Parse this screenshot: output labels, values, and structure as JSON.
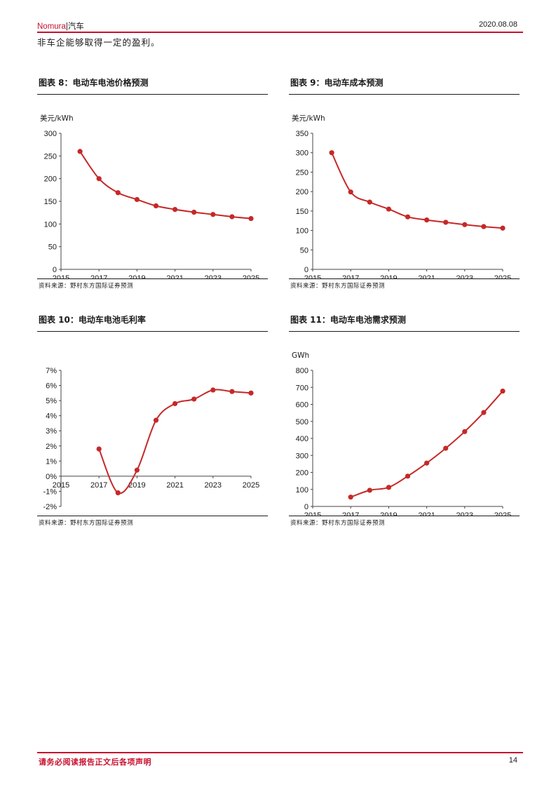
{
  "header": {
    "brand": "Nomura",
    "section": "|汽车",
    "date": "2020.08.08",
    "accent": "#c8102e"
  },
  "intro_text": "非车企能够取得一定的盈利。",
  "figures": [
    {
      "title": "图表 8：电动车电池价格预测",
      "source": "资料来源：野村东方国际证券预测"
    },
    {
      "title": "图表 9：电动车成本预测",
      "source": "资料来源：野村东方国际证券预测"
    },
    {
      "title": "图表 10：电动车电池毛利率",
      "source": "资料来源：野村东方国际证券预测"
    },
    {
      "title": "图表 11：电动车电池需求预测",
      "source": "资料来源：野村东方国际证券预测"
    }
  ],
  "chart_data": [
    {
      "type": "line",
      "title": "图表 8：电动车电池价格预测",
      "ylabel": "美元/kWh",
      "x": [
        2016,
        2017,
        2018,
        2019,
        2020,
        2021,
        2022,
        2023,
        2024,
        2025
      ],
      "values": [
        260,
        200,
        169,
        154,
        140,
        132,
        126,
        121,
        116,
        112
      ],
      "xlim": [
        2015,
        2025
      ],
      "xticks": [
        "2015",
        "2017",
        "2019",
        "2021",
        "2023",
        "2025"
      ],
      "ylim": [
        0,
        300
      ],
      "yticks": [
        "0",
        "50",
        "100",
        "150",
        "200",
        "250",
        "300"
      ],
      "color": "#c62828",
      "grid": false,
      "legend": "none"
    },
    {
      "type": "line",
      "title": "图表 9：电动车成本预测",
      "ylabel": "美元/kWh",
      "x": [
        2016,
        2017,
        2018,
        2019,
        2020,
        2021,
        2022,
        2023,
        2024,
        2025
      ],
      "values": [
        300,
        199,
        173,
        155,
        135,
        127,
        121,
        115,
        110,
        106
      ],
      "xlim": [
        2015,
        2025
      ],
      "xticks": [
        "2015",
        "2017",
        "2019",
        "2021",
        "2023",
        "2025"
      ],
      "ylim": [
        0,
        350
      ],
      "yticks": [
        "0",
        "50",
        "100",
        "150",
        "200",
        "250",
        "300",
        "350"
      ],
      "color": "#c62828",
      "grid": false,
      "legend": "none"
    },
    {
      "type": "line",
      "title": "图表 10：电动车电池毛利率",
      "ylabel": "",
      "x": [
        2017,
        2018,
        2019,
        2020,
        2021,
        2022,
        2023,
        2024,
        2025
      ],
      "values": [
        1.8,
        -1.1,
        0.4,
        3.7,
        4.8,
        5.1,
        5.7,
        5.6,
        5.5
      ],
      "xlim": [
        2015,
        2025
      ],
      "xticks": [
        "2015",
        "2017",
        "2019",
        "2021",
        "2023",
        "2025"
      ],
      "ylim": [
        -2,
        7
      ],
      "yticks": [
        "-2%",
        "-1%",
        "0%",
        "1%",
        "2%",
        "3%",
        "4%",
        "5%",
        "6%",
        "7%"
      ],
      "color": "#c62828",
      "grid": false,
      "legend": "none"
    },
    {
      "type": "line",
      "title": "图表 11：电动车电池需求预测",
      "ylabel": "GWh",
      "x": [
        2017,
        2018,
        2019,
        2020,
        2021,
        2022,
        2023,
        2024,
        2025
      ],
      "values": [
        55,
        95,
        112,
        178,
        255,
        342,
        440,
        552,
        678
      ],
      "xlim": [
        2015,
        2025
      ],
      "xticks": [
        "2015",
        "2017",
        "2019",
        "2021",
        "2023",
        "2025"
      ],
      "ylim": [
        0,
        800
      ],
      "yticks": [
        "0",
        "100",
        "200",
        "300",
        "400",
        "500",
        "600",
        "700",
        "800"
      ],
      "color": "#c62828",
      "grid": false,
      "legend": "none"
    }
  ],
  "footer": {
    "disclaimer": "请务必阅读报告正文后各项声明",
    "page_number": "14"
  }
}
